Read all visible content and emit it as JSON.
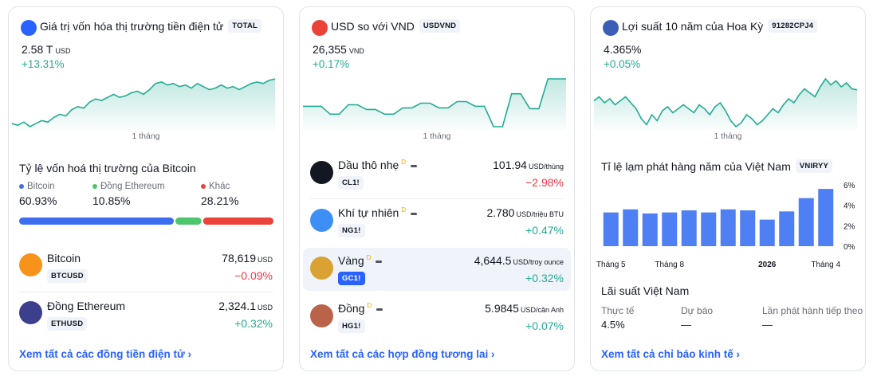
{
  "cards": [
    {
      "title": "Giá trị vốn hóa thị trường tiền điện tử",
      "symbol": "TOTAL",
      "price": "2.58 T",
      "currency": "USD",
      "change": "+13.31%",
      "sparkline": {
        "type": "line",
        "color": "#22ab94",
        "values": [
          2.29,
          2.28,
          2.3,
          2.27,
          2.29,
          2.31,
          2.3,
          2.33,
          2.35,
          2.34,
          2.38,
          2.4,
          2.39,
          2.43,
          2.45,
          2.44,
          2.46,
          2.48,
          2.46,
          2.47,
          2.49,
          2.5,
          2.48,
          2.51,
          2.55,
          2.56,
          2.54,
          2.55,
          2.53,
          2.54,
          2.52,
          2.55,
          2.53,
          2.51,
          2.52,
          2.54,
          2.52,
          2.53,
          2.51,
          2.53,
          2.55,
          2.56,
          2.55,
          2.57,
          2.58
        ]
      },
      "period": "1 tháng",
      "share_title": "Tỷ lệ vốn hoá thị trường của Bitcoin",
      "shares": {
        "type": "stacked-bar",
        "categories": [
          "Bitcoin",
          "Đồng Ethereum",
          "Khác"
        ],
        "colors": [
          "#3d6ef0",
          "#4cc56c",
          "#e9433a"
        ],
        "values": [
          60.93,
          10.85,
          28.21
        ],
        "value_labels": [
          "60.93%",
          "10.85%",
          "28.21%"
        ]
      },
      "rows": [
        {
          "name": "Bitcoin",
          "symbol": "BTCUSD",
          "price": "78,619",
          "unit": "USD",
          "change": "−0.09%"
        },
        {
          "name": "Đồng Ethereum",
          "symbol": "ETHUSD",
          "price": "2,324.1",
          "unit": "USD",
          "change": "+0.32%"
        }
      ],
      "link": "Xem tất cả các đồng tiền điện tử ›"
    },
    {
      "title": "USD so với VND",
      "symbol": "USDVND",
      "price": "26,355",
      "currency": "VND",
      "change": "+0.17%",
      "sparkline": {
        "type": "line",
        "color": "#22ab94",
        "values": [
          26320,
          26320,
          26320,
          26310,
          26310,
          26322,
          26322,
          26316,
          26316,
          26310,
          26310,
          26318,
          26318,
          26324,
          26324,
          26318,
          26318,
          26326,
          26326,
          26320,
          26320,
          26294,
          26294,
          26336,
          26336,
          26317,
          26317,
          26355,
          26355,
          26355
        ]
      },
      "period": "1 tháng",
      "rows": [
        {
          "name": "Dầu thô nhẹ",
          "flag": "D",
          "symbol": "CL1!",
          "price": "101.94",
          "unit": "USD/thùng",
          "change": "−2.98%"
        },
        {
          "name": "Khí tự nhiên",
          "flag": "D",
          "symbol": "NG1!",
          "price": "2.780",
          "unit": "USD/triệu BTU",
          "change": "+0.47%"
        },
        {
          "name": "Vàng",
          "flag": "D",
          "symbol": "GC1!",
          "price": "4,644.5",
          "unit": "USD/troy ounce",
          "change": "+0.32%",
          "selected": true
        },
        {
          "name": "Đồng",
          "flag": "D",
          "symbol": "HG1!",
          "price": "5.9845",
          "unit": "USD/cân Anh",
          "change": "+0.07%"
        }
      ],
      "link": "Xem tất cả các hợp đồng tương lai ›"
    },
    {
      "title": "Lợi suất 10 năm của Hoa Kỳ",
      "symbol": "91282CPJ4",
      "price": "4.365%",
      "change": "+0.05%",
      "sparkline": {
        "type": "line",
        "color": "#22ab94",
        "values": [
          4.31,
          4.33,
          4.3,
          4.32,
          4.29,
          4.31,
          4.33,
          4.3,
          4.27,
          4.22,
          4.19,
          4.24,
          4.21,
          4.26,
          4.28,
          4.25,
          4.27,
          4.29,
          4.27,
          4.25,
          4.29,
          4.27,
          4.24,
          4.28,
          4.3,
          4.26,
          4.21,
          4.18,
          4.2,
          4.24,
          4.22,
          4.19,
          4.21,
          4.24,
          4.27,
          4.25,
          4.29,
          4.32,
          4.3,
          4.34,
          4.37,
          4.35,
          4.33,
          4.38,
          4.42,
          4.39,
          4.41,
          4.38,
          4.4,
          4.37,
          4.365
        ]
      },
      "period": "1 tháng",
      "chart": {
        "type": "bar",
        "title": "Tỉ lệ lạm phát hàng năm của Việt Nam",
        "symbol": "VNIRYY",
        "color": "#4e7ff3",
        "categories": [
          "Tháng 5",
          null,
          null,
          "Tháng 8",
          null,
          null,
          null,
          null,
          "2026",
          null,
          null,
          "Tháng 4"
        ],
        "values": [
          3.3,
          3.6,
          3.2,
          3.3,
          3.5,
          3.3,
          3.6,
          3.5,
          2.6,
          3.4,
          4.7,
          5.6
        ],
        "ylim": [
          0,
          6
        ],
        "yticks": [
          {
            "value": 0,
            "label": "0%"
          },
          {
            "value": 2,
            "label": "2%"
          },
          {
            "value": 4,
            "label": "4%"
          },
          {
            "value": 6,
            "label": "6%"
          }
        ]
      },
      "rates": {
        "title": "Lãi suất Việt Nam",
        "columns": [
          {
            "label": "Thực tế",
            "value": "4.5%"
          },
          {
            "label": "Dự báo",
            "value": "—"
          },
          {
            "label": "Lần phát hành tiếp theo",
            "value": "—"
          }
        ]
      },
      "link": "Xem tất cả chỉ báo kinh tế ›"
    }
  ]
}
